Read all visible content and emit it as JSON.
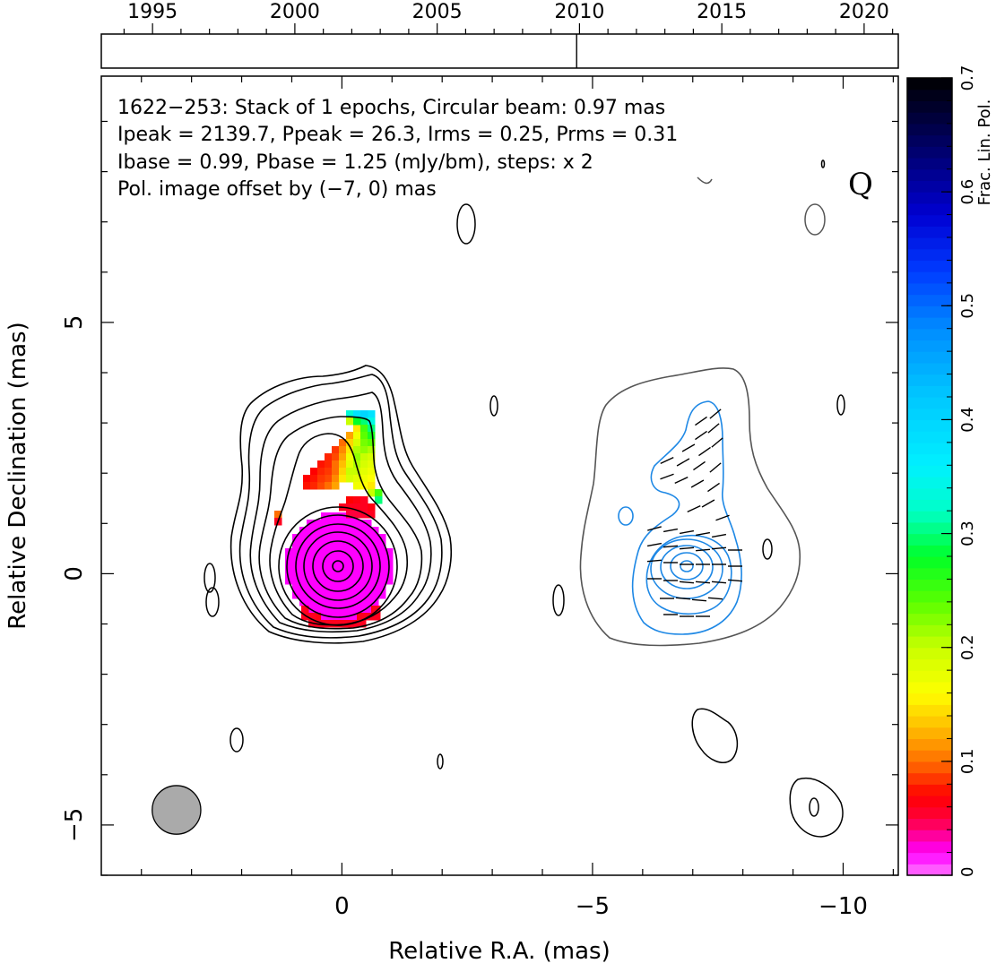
{
  "chart_data": {
    "type": "contour",
    "source": "1622−253",
    "annotations": {
      "line1": "1622−253: Stack of 1 epochs, Circular beam: 0.97 mas",
      "line2": "Ipeak = 2139.7, Ppeak = 26.3, Irms = 0.25, Prms = 0.31",
      "line3": "Ibase = 0.99, Pbase = 1.25 (mJy/bm), steps: x 2",
      "line4": "Pol. image offset by (−7, 0) mas",
      "quality": "Q"
    },
    "xlabel": "Relative R.A. (mas)",
    "ylabel": "Relative Declination (mas)",
    "xlim": [
      4.8,
      -11.1
    ],
    "ylim": [
      -6.0,
      9.9
    ],
    "xticks": [
      0,
      -5,
      -10
    ],
    "xtick_labels": [
      "0",
      "−5",
      "−10"
    ],
    "yticks": [
      -5,
      0,
      5
    ],
    "ytick_labels": [
      "−5",
      "0",
      "5"
    ],
    "timeline": {
      "range": [
        1993.2,
        2021.2
      ],
      "tick_labels": [
        "1995",
        "2000",
        "2005",
        "2010",
        "2015",
        "2020"
      ],
      "ticks": [
        1995,
        2000,
        2005,
        2010,
        2015,
        2020
      ],
      "epochs": [
        2009.9
      ]
    },
    "beam": {
      "diameter_mas": 0.97,
      "position": [
        3.3,
        -4.7
      ]
    },
    "pol_offset": [
      -7,
      0
    ],
    "colorbar": {
      "label": "Frac. Lin. Pol.",
      "range": [
        0,
        0.7
      ],
      "ticks": [
        0,
        0.1,
        0.2,
        0.3,
        0.4,
        0.5,
        0.6,
        0.7
      ],
      "tick_labels": [
        "0",
        "0.1",
        "0.2",
        "0.3",
        "0.4",
        "0.5",
        "0.6",
        "0.7"
      ]
    },
    "colors": {
      "total_intensity_contours": "#000000",
      "pol_contours": "#1e88e5",
      "lowest_pol_contour": "#555555",
      "beam": "#aaaaaa",
      "annotation_blue": "#1e88e5"
    }
  }
}
